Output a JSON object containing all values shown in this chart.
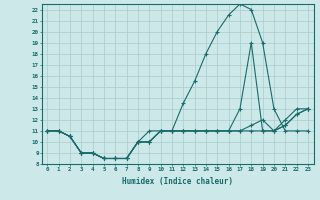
{
  "xlabel": "Humidex (Indice chaleur)",
  "bg_color": "#cce8e8",
  "grid_color": "#aacccc",
  "line_color": "#1a6b6b",
  "xlim": [
    -0.5,
    23.5
  ],
  "ylim": [
    8,
    22.5
  ],
  "xticks": [
    0,
    1,
    2,
    3,
    4,
    5,
    6,
    7,
    8,
    9,
    10,
    11,
    12,
    13,
    14,
    15,
    16,
    17,
    18,
    19,
    20,
    21,
    22,
    23
  ],
  "yticks": [
    8,
    9,
    10,
    11,
    12,
    13,
    14,
    15,
    16,
    17,
    18,
    19,
    20,
    21,
    22
  ],
  "lines": [
    {
      "x": [
        0,
        1,
        2,
        3,
        4,
        5,
        6,
        7,
        8,
        9,
        10,
        11,
        12,
        13,
        14,
        15,
        16,
        17,
        18,
        19,
        20,
        21,
        22,
        23
      ],
      "y": [
        11,
        11,
        10.5,
        9,
        9,
        8.5,
        8.5,
        8.5,
        10,
        10,
        11,
        11,
        13.5,
        15.5,
        18,
        20,
        21.5,
        22.5,
        22,
        19,
        13,
        11,
        11,
        11
      ]
    },
    {
      "x": [
        0,
        1,
        2,
        3,
        4,
        5,
        6,
        7,
        8,
        9,
        10,
        11,
        12,
        13,
        14,
        15,
        16,
        17,
        18,
        19,
        20,
        21,
        22,
        23
      ],
      "y": [
        11,
        11,
        10.5,
        9,
        9,
        8.5,
        8.5,
        8.5,
        10,
        11,
        11,
        11,
        11,
        11,
        11,
        11,
        11,
        13,
        19,
        11,
        11,
        11.5,
        12.5,
        13
      ]
    },
    {
      "x": [
        0,
        1,
        2,
        3,
        4,
        5,
        6,
        7,
        8,
        9,
        10,
        11,
        12,
        13,
        14,
        15,
        16,
        17,
        18,
        19,
        20,
        21,
        22,
        23
      ],
      "y": [
        11,
        11,
        10.5,
        9,
        9,
        8.5,
        8.5,
        8.5,
        10,
        10,
        11,
        11,
        11,
        11,
        11,
        11,
        11,
        11,
        11,
        11,
        11,
        12,
        13,
        13
      ]
    },
    {
      "x": [
        0,
        1,
        2,
        3,
        4,
        5,
        6,
        7,
        8,
        9,
        10,
        11,
        12,
        13,
        14,
        15,
        16,
        17,
        18,
        19,
        20,
        21,
        22,
        23
      ],
      "y": [
        11,
        11,
        10.5,
        9,
        9,
        8.5,
        8.5,
        8.5,
        10,
        10,
        11,
        11,
        11,
        11,
        11,
        11,
        11,
        11,
        11.5,
        12,
        11,
        11.5,
        12.5,
        13
      ]
    }
  ]
}
